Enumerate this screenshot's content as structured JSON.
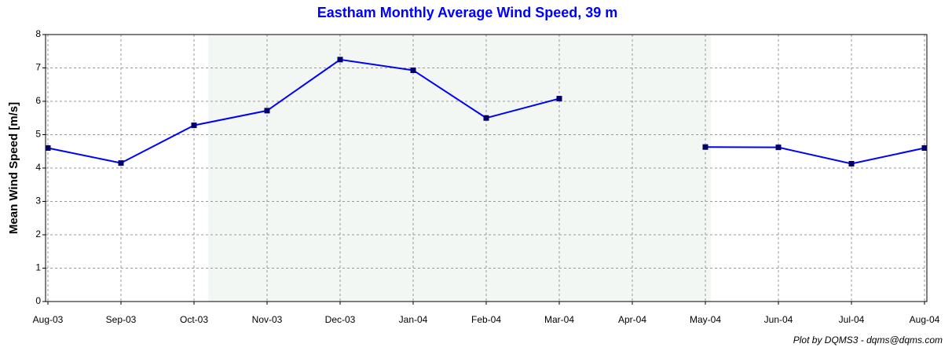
{
  "chart_data": {
    "type": "line",
    "title": "Eastham Monthly Average Wind Speed, 39 m",
    "y_label": "Mean Wind Speed [m/s]",
    "footer": "Plot by DQMS3 - dqms@dqms.com",
    "categories": [
      "Aug-03",
      "Sep-03",
      "Oct-03",
      "Nov-03",
      "Dec-03",
      "Jan-04",
      "Feb-04",
      "Mar-04",
      "Apr-04",
      "May-04",
      "Jun-04",
      "Jul-04",
      "Aug-04"
    ],
    "series": [
      {
        "color": "#0000ff",
        "marker_color": "#000066",
        "values": [
          4.6,
          4.15,
          5.28,
          5.72,
          7.25,
          6.93,
          5.5,
          6.08,
          null,
          4.63,
          4.62,
          4.13,
          4.6
        ]
      }
    ],
    "ylim": [
      0,
      8
    ],
    "yticks": [
      0,
      1,
      2,
      3,
      4,
      5,
      6,
      7,
      8
    ],
    "grid": true
  }
}
